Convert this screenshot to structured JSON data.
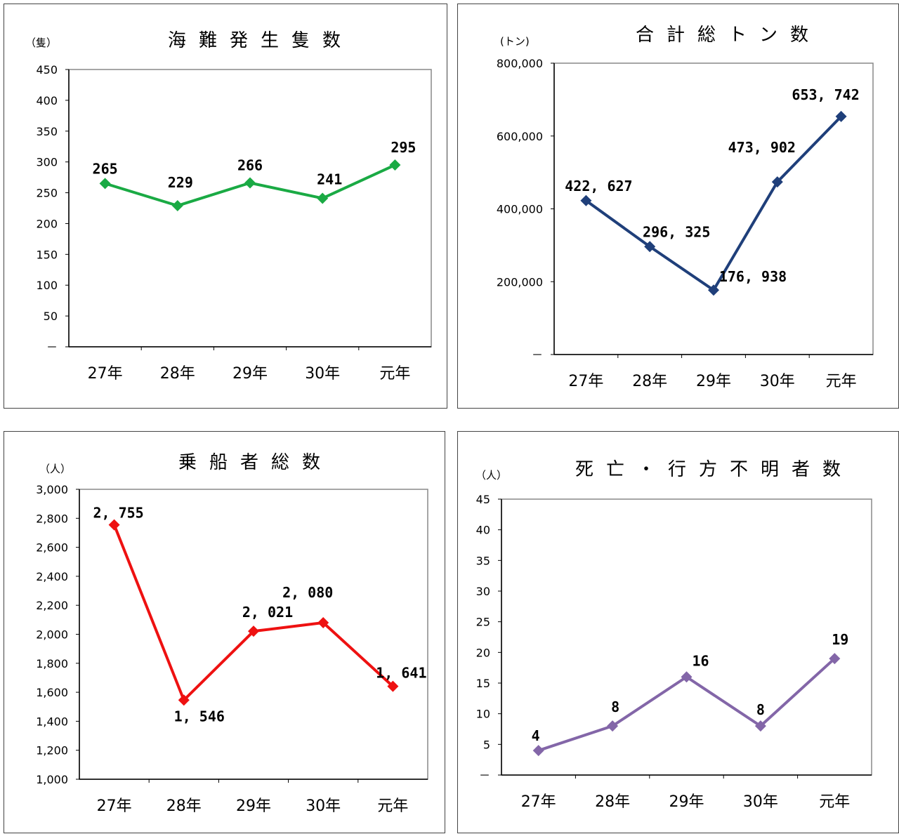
{
  "chart_data": [
    {
      "type": "line",
      "title": "海難発生隻数",
      "unit_label": "（隻）",
      "categories": [
        "27年",
        "28年",
        "29年",
        "30年",
        "元年"
      ],
      "series": [
        {
          "values": [
            265,
            229,
            266,
            241,
            295
          ],
          "color": "#1aaa44"
        }
      ],
      "data_labels": [
        "265",
        "229",
        "266",
        "241",
        "295"
      ],
      "y_ticks": [
        "－",
        "50",
        "100",
        "150",
        "200",
        "250",
        "300",
        "350",
        "400",
        "450"
      ],
      "ylim": [
        0,
        450
      ],
      "grid": false,
      "legend": "none"
    },
    {
      "type": "line",
      "title": "合計総トン数",
      "unit_label": "(トン)",
      "categories": [
        "27年",
        "28年",
        "29年",
        "30年",
        "元年"
      ],
      "series": [
        {
          "values": [
            422627,
            296325,
            176938,
            473902,
            653742
          ],
          "color": "#1f3f7a"
        }
      ],
      "data_labels": [
        "422, 627",
        "296, 325",
        "176, 938",
        "473, 902",
        "653, 742"
      ],
      "y_ticks": [
        "－",
        "200,000",
        "400,000",
        "600,000",
        "800,000"
      ],
      "ylim": [
        0,
        800000
      ],
      "grid": false,
      "legend": "none"
    },
    {
      "type": "line",
      "title": "乗船者総数",
      "unit_label": "（人）",
      "categories": [
        "27年",
        "28年",
        "29年",
        "30年",
        "元年"
      ],
      "series": [
        {
          "values": [
            2755,
            1546,
            2021,
            2080,
            1641
          ],
          "color": "#ee1111"
        }
      ],
      "data_labels": [
        "2, 755",
        "1, 546",
        "2, 021",
        "2, 080",
        "1, 641"
      ],
      "y_ticks": [
        "1,000",
        "1,200",
        "1,400",
        "1,600",
        "1,800",
        "2,000",
        "2,200",
        "2,400",
        "2,600",
        "2,800",
        "3,000"
      ],
      "ylim": [
        1000,
        3000
      ],
      "grid": false,
      "legend": "none"
    },
    {
      "type": "line",
      "title": "死亡・行方不明者数",
      "unit_label": "（人）",
      "categories": [
        "27年",
        "28年",
        "29年",
        "30年",
        "元年"
      ],
      "series": [
        {
          "values": [
            4,
            8,
            16,
            8,
            19
          ],
          "color": "#8366a8"
        }
      ],
      "data_labels": [
        "4",
        "8",
        "16",
        "8",
        "19"
      ],
      "y_ticks": [
        "－",
        "5",
        "10",
        "15",
        "20",
        "25",
        "30",
        "35",
        "40",
        "45"
      ],
      "ylim": [
        0,
        45
      ],
      "grid": false,
      "legend": "none"
    }
  ]
}
